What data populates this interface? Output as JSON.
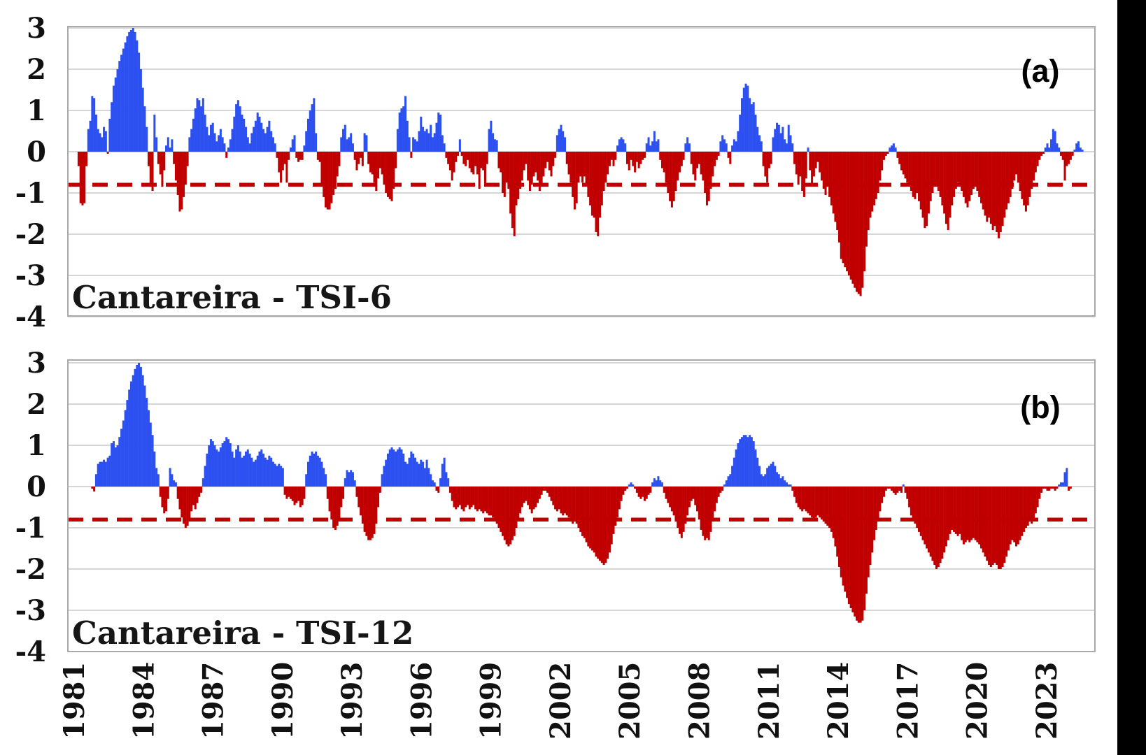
{
  "figure": {
    "background": "#ffffff",
    "right_edge_band_color": "#000000",
    "grid_color": "#c8c8c8",
    "frame_color": "#a9a9a9",
    "positive_color": "#2d50f0",
    "negative_color": "#c00000",
    "threshold_color": "#c00000"
  },
  "chart_data": [
    {
      "type": "bar",
      "panel_label": "(a)",
      "title": "Cantareira - TSI-6",
      "ylim": [
        -4,
        3
      ],
      "yticks": [
        3,
        2,
        1,
        0,
        -1,
        -2,
        -3,
        -4
      ],
      "x_axis": {
        "start": "1981-06",
        "frequency": "monthly",
        "tick_years": [
          1981,
          1984,
          1987,
          1990,
          1993,
          1996,
          1999,
          2002,
          2005,
          2008,
          2011,
          2014,
          2017,
          2020,
          2023
        ]
      },
      "threshold": {
        "value": -0.8,
        "style": "dashed"
      },
      "grid": true,
      "legend": "none",
      "values": [
        -0.35,
        -1.25,
        -1.3,
        -1.25,
        -0.35,
        0.55,
        0.75,
        1.35,
        1.3,
        0.9,
        0.55,
        0.45,
        0.35,
        0.6,
        0.5,
        -0.05,
        0.8,
        1.2,
        1.6,
        1.8,
        2.0,
        2.2,
        2.35,
        2.5,
        2.65,
        2.8,
        2.9,
        2.95,
        3.0,
        2.9,
        2.7,
        2.4,
        2.0,
        1.55,
        1.1,
        0.6,
        -0.35,
        -0.85,
        -0.95,
        0.9,
        0.35,
        -0.3,
        -0.55,
        -0.85,
        -0.45,
        0.15,
        0.35,
        0.1,
        0.3,
        -0.3,
        -0.7,
        -1.05,
        -1.45,
        -1.4,
        -1.1,
        -0.8,
        -0.35,
        0.35,
        0.55,
        0.8,
        1.05,
        1.3,
        1.25,
        1.1,
        1.3,
        0.9,
        0.6,
        0.4,
        0.65,
        0.7,
        0.45,
        0.25,
        0.4,
        0.55,
        0.35,
        0.2,
        -0.15,
        0.1,
        0.3,
        0.55,
        0.85,
        1.15,
        1.25,
        1.1,
        0.9,
        0.8,
        0.6,
        0.35,
        0.2,
        0.45,
        0.6,
        0.75,
        0.95,
        0.85,
        0.7,
        0.55,
        0.45,
        0.6,
        0.75,
        0.5,
        0.35,
        0.2,
        -0.15,
        -0.5,
        -0.75,
        -0.45,
        -0.3,
        -0.75,
        -0.2,
        0.1,
        0.3,
        0.4,
        -0.15,
        -0.25,
        -0.2,
        -0.2,
        0.15,
        0.5,
        0.8,
        1.0,
        1.15,
        1.3,
        0.45,
        -0.2,
        -0.25,
        -0.8,
        -1.1,
        -1.35,
        -1.4,
        -1.4,
        -1.25,
        -1.05,
        -0.9,
        -0.6,
        -0.35,
        0.35,
        0.55,
        0.65,
        0.3,
        0.35,
        0.45,
        0.2,
        -0.2,
        -0.45,
        -0.3,
        -0.15,
        -0.35,
        0.45,
        0.4,
        -0.3,
        -0.5,
        -0.55,
        -0.75,
        -0.95,
        -0.65,
        -0.4,
        -0.55,
        -0.8,
        -1.0,
        -1.1,
        -1.15,
        -1.2,
        -0.9,
        -0.4,
        0.55,
        0.95,
        1.05,
        1.1,
        1.35,
        0.75,
        0.35,
        -0.15,
        0.35,
        0.3,
        0.25,
        0.5,
        0.85,
        0.6,
        0.5,
        0.55,
        0.45,
        0.65,
        0.35,
        0.45,
        0.7,
        0.95,
        0.9,
        0.4,
        0.2,
        -0.15,
        -0.3,
        -0.45,
        -0.7,
        -0.5,
        -0.25,
        -0.1,
        0.3,
        -0.1,
        -0.3,
        -0.35,
        -0.2,
        -0.4,
        -0.5,
        -0.55,
        -0.35,
        -0.55,
        -0.9,
        -0.4,
        -0.45,
        -0.78,
        -0.3,
        0.55,
        0.75,
        0.45,
        0.3,
        0.28,
        -0.4,
        -0.5,
        -1.0,
        -1.1,
        -0.75,
        -0.9,
        -1.5,
        -1.85,
        -2.05,
        -1.3,
        -1.15,
        -0.9,
        -0.7,
        -0.45,
        -0.3,
        -0.7,
        -0.95,
        -0.8,
        -0.6,
        -0.5,
        -0.7,
        -0.95,
        -0.8,
        -0.6,
        -0.4,
        -0.25,
        -0.45,
        -0.6,
        -0.35,
        -0.15,
        0.4,
        0.55,
        0.65,
        0.5,
        0.35,
        -0.3,
        -0.55,
        -0.75,
        -1.1,
        -1.4,
        -1.25,
        -0.75,
        -0.6,
        -0.75,
        -0.6,
        -0.8,
        -1.1,
        -1.3,
        -1.55,
        -1.6,
        -1.95,
        -2.05,
        -1.6,
        -1.3,
        -0.95,
        -0.75,
        -0.55,
        -0.35,
        -0.2,
        -0.35,
        -0.2,
        0.15,
        0.3,
        0.35,
        0.3,
        0.2,
        -0.3,
        -0.45,
        -0.2,
        -0.35,
        -0.5,
        -0.25,
        -0.4,
        -0.3,
        -0.2,
        -0.15,
        0.2,
        0.35,
        0.15,
        0.25,
        0.5,
        0.25,
        0.3,
        -0.2,
        -0.4,
        -0.5,
        -0.75,
        -1.0,
        -1.2,
        -1.35,
        -1.2,
        -0.95,
        -0.7,
        -0.5,
        -0.35,
        -0.2,
        0.2,
        0.35,
        0.2,
        -0.3,
        -0.55,
        -0.7,
        -0.4,
        -0.3,
        -0.55,
        -0.7,
        -1.0,
        -1.3,
        -1.2,
        -0.9,
        -0.6,
        -0.35,
        -0.2,
        -0.1,
        0.25,
        0.4,
        0.3,
        0.2,
        -0.15,
        -0.3,
        0.15,
        0.3,
        0.25,
        0.5,
        0.9,
        1.3,
        1.55,
        1.65,
        1.6,
        1.3,
        1.15,
        1.2,
        0.9,
        0.6,
        0.4,
        0.25,
        -0.35,
        -0.6,
        -0.75,
        -0.4,
        -0.3,
        0.35,
        0.55,
        0.7,
        0.65,
        0.45,
        0.6,
        0.3,
        0.2,
        0.65,
        0.4,
        0.2,
        -0.3,
        -0.55,
        -0.8,
        -0.6,
        -0.95,
        -1.1,
        -0.65,
        0.1,
        -0.45,
        -0.8,
        -0.6,
        -0.4,
        -0.25,
        -0.5,
        -0.7,
        -0.9,
        -1.05,
        -0.85,
        -1.1,
        -1.3,
        -1.5,
        -1.7,
        -1.9,
        -2.2,
        -2.6,
        -2.7,
        -2.8,
        -2.9,
        -3.0,
        -3.1,
        -3.2,
        -3.3,
        -3.4,
        -3.45,
        -3.5,
        -3.3,
        -2.9,
        -2.3,
        -1.9,
        -1.6,
        -1.45,
        -1.3,
        -1.15,
        -1.0,
        -0.7,
        -0.45,
        -0.2,
        -0.1,
        -0.05,
        0.1,
        0.15,
        0.2,
        0.1,
        -0.15,
        -0.3,
        -0.45,
        -0.55,
        -0.65,
        -0.75,
        -0.8,
        -0.95,
        -1.1,
        -1.15,
        -1.0,
        -1.2,
        -1.4,
        -1.6,
        -1.85,
        -1.8,
        -1.5,
        -1.2,
        -1.0,
        -0.85,
        -0.8,
        -0.95,
        -1.1,
        -1.3,
        -1.5,
        -1.75,
        -1.9,
        -1.6,
        -1.3,
        -1.1,
        -0.9,
        -0.75,
        -0.8,
        -0.95,
        -1.1,
        -1.25,
        -1.35,
        -1.2,
        -1.05,
        -0.9,
        -0.85,
        -0.95,
        -1.1,
        -1.25,
        -1.4,
        -1.55,
        -1.7,
        -1.6,
        -1.75,
        -1.9,
        -1.8,
        -1.95,
        -2.1,
        -1.95,
        -1.8,
        -1.6,
        -1.4,
        -1.25,
        -1.1,
        -0.9,
        -0.7,
        -0.55,
        -0.75,
        -0.95,
        -1.15,
        -1.3,
        -1.45,
        -1.3,
        -1.1,
        -0.9,
        -0.7,
        -0.5,
        -0.35,
        -0.2,
        -0.1,
        -0.05,
        0.1,
        0.2,
        0.1,
        0.3,
        0.55,
        0.5,
        0.2,
        0.1,
        -0.1,
        -0.2,
        -0.7,
        -0.35,
        -0.3,
        -0.2,
        -0.1,
        0.05,
        0.2,
        0.25,
        0.1,
        0.05
      ]
    },
    {
      "type": "bar",
      "panel_label": "(b)",
      "title": "Cantareira - TSI-12",
      "ylim": [
        -4,
        3
      ],
      "yticks": [
        3,
        2,
        1,
        0,
        -1,
        -2,
        -3,
        -4
      ],
      "x_axis": {
        "start": "1982-01",
        "frequency": "monthly",
        "tick_years": [
          1981,
          1984,
          1987,
          1990,
          1993,
          1996,
          1999,
          2002,
          2005,
          2008,
          2011,
          2014,
          2017,
          2020,
          2023
        ]
      },
      "threshold": {
        "value": -0.8,
        "style": "dashed"
      },
      "grid": true,
      "legend": "none",
      "values": [
        -0.05,
        -0.12,
        0.3,
        0.55,
        0.6,
        0.6,
        0.65,
        0.6,
        0.7,
        0.75,
        1.05,
        1.1,
        0.95,
        1.0,
        1.2,
        1.4,
        1.6,
        1.85,
        2.1,
        2.35,
        2.55,
        2.7,
        2.85,
        2.95,
        3.0,
        2.9,
        2.7,
        2.45,
        2.15,
        1.85,
        1.55,
        1.25,
        0.85,
        0.45,
        0.3,
        -0.25,
        -0.5,
        -0.65,
        -0.6,
        -0.3,
        0.45,
        0.3,
        0.15,
        0.1,
        -0.3,
        -0.55,
        -0.75,
        -0.9,
        -1.0,
        -0.95,
        -0.85,
        -0.6,
        -0.45,
        -0.55,
        -0.4,
        -0.25,
        -0.15,
        0.2,
        0.5,
        0.8,
        1.0,
        1.15,
        1.1,
        1.0,
        0.9,
        0.85,
        0.95,
        1.05,
        1.1,
        1.2,
        1.15,
        1.05,
        0.85,
        0.7,
        0.9,
        1.0,
        0.85,
        0.7,
        0.75,
        0.85,
        0.9,
        0.8,
        0.7,
        0.6,
        0.65,
        0.75,
        0.85,
        0.9,
        0.8,
        0.7,
        0.65,
        0.75,
        0.7,
        0.6,
        0.55,
        0.5,
        0.55,
        0.5,
        0.45,
        -0.2,
        -0.3,
        -0.25,
        -0.3,
        -0.35,
        -0.45,
        -0.4,
        -0.35,
        -0.5,
        -0.45,
        -0.3,
        0.3,
        0.6,
        0.75,
        0.85,
        0.8,
        0.85,
        0.75,
        0.7,
        0.6,
        0.45,
        0.3,
        -0.3,
        -0.6,
        -0.8,
        -1.0,
        -1.05,
        -0.95,
        -0.8,
        -0.5,
        -0.3,
        0.2,
        0.4,
        0.35,
        0.4,
        0.35,
        0.15,
        -0.25,
        -0.5,
        -0.7,
        -0.9,
        -1.1,
        -1.2,
        -1.3,
        -1.3,
        -1.25,
        -1.15,
        -0.9,
        -0.5,
        -0.15,
        0.3,
        0.5,
        0.65,
        0.8,
        0.9,
        0.95,
        0.9,
        0.85,
        0.9,
        0.95,
        0.9,
        0.8,
        0.6,
        0.55,
        0.7,
        0.85,
        0.8,
        0.7,
        0.6,
        0.55,
        0.65,
        0.6,
        0.45,
        0.65,
        0.45,
        0.3,
        0.15,
        0.1,
        -0.1,
        -0.15,
        0.2,
        0.55,
        0.7,
        0.35,
        0.2,
        -0.15,
        -0.35,
        -0.5,
        -0.55,
        -0.5,
        -0.45,
        -0.55,
        -0.6,
        -0.5,
        -0.45,
        -0.55,
        -0.5,
        -0.45,
        -0.55,
        -0.6,
        -0.55,
        -0.6,
        -0.65,
        -0.6,
        -0.65,
        -0.7,
        -0.7,
        -0.75,
        -0.8,
        -0.9,
        -1.0,
        -1.1,
        -1.2,
        -1.3,
        -1.4,
        -1.45,
        -1.4,
        -1.3,
        -1.2,
        -1.0,
        -0.8,
        -0.65,
        -0.5,
        -0.4,
        -0.35,
        -0.45,
        -0.55,
        -0.65,
        -0.55,
        -0.5,
        -0.4,
        -0.3,
        -0.2,
        -0.1,
        -0.1,
        -0.15,
        -0.25,
        -0.35,
        -0.45,
        -0.55,
        -0.6,
        -0.55,
        -0.65,
        -0.7,
        -0.65,
        -0.7,
        -0.75,
        -0.85,
        -0.9,
        -0.85,
        -0.9,
        -1.0,
        -1.1,
        -1.2,
        -1.25,
        -1.35,
        -1.45,
        -1.5,
        -1.55,
        -1.6,
        -1.7,
        -1.75,
        -1.8,
        -1.85,
        -1.9,
        -1.85,
        -1.75,
        -1.6,
        -1.4,
        -1.15,
        -0.95,
        -0.75,
        -0.55,
        -0.35,
        -0.2,
        -0.1,
        -0.05,
        0.05,
        0.1,
        0.05,
        -0.05,
        -0.15,
        -0.25,
        -0.3,
        -0.25,
        -0.35,
        -0.3,
        -0.2,
        -0.15,
        0.1,
        0.2,
        0.15,
        0.25,
        0.15,
        0.1,
        -0.15,
        -0.3,
        -0.4,
        -0.5,
        -0.6,
        -0.7,
        -0.85,
        -1.0,
        -1.15,
        -1.25,
        -1.1,
        -0.9,
        -0.7,
        -0.5,
        -0.35,
        -0.3,
        -0.45,
        -0.6,
        -0.8,
        -1.05,
        -1.2,
        -1.3,
        -1.25,
        -1.3,
        -1.1,
        -0.85,
        -0.6,
        -0.4,
        -0.25,
        -0.15,
        -0.1,
        0.05,
        0.15,
        0.25,
        0.3,
        0.5,
        0.7,
        0.9,
        1.05,
        1.15,
        1.2,
        1.25,
        1.25,
        1.2,
        1.25,
        1.2,
        1.1,
        0.9,
        0.7,
        0.5,
        0.3,
        0.25,
        0.3,
        0.45,
        0.5,
        0.55,
        0.6,
        0.5,
        0.35,
        0.3,
        0.2,
        0.25,
        0.15,
        0.1,
        0.05,
        0.05,
        -0.1,
        -0.25,
        -0.4,
        -0.5,
        -0.55,
        -0.6,
        -0.55,
        -0.6,
        -0.65,
        -0.7,
        -0.75,
        -0.8,
        -0.75,
        -0.7,
        -0.75,
        -0.8,
        -0.85,
        -0.9,
        -0.95,
        -1.0,
        -1.1,
        -1.25,
        -1.45,
        -1.7,
        -1.95,
        -2.2,
        -2.4,
        -2.55,
        -2.7,
        -2.85,
        -2.95,
        -3.05,
        -3.15,
        -3.25,
        -3.3,
        -3.3,
        -3.25,
        -3.0,
        -2.6,
        -2.2,
        -1.9,
        -1.6,
        -1.3,
        -1.05,
        -0.85,
        -0.6,
        -0.4,
        -0.25,
        -0.1,
        -0.05,
        -0.05,
        -0.1,
        -0.15,
        -0.2,
        -0.15,
        -0.1,
        -0.15,
        0.05,
        -0.15,
        -0.3,
        -0.5,
        -0.7,
        -0.8,
        -0.9,
        -1.0,
        -1.1,
        -1.2,
        -1.3,
        -1.4,
        -1.5,
        -1.6,
        -1.7,
        -1.8,
        -1.9,
        -2.0,
        -1.95,
        -1.85,
        -1.75,
        -1.6,
        -1.45,
        -1.3,
        -1.15,
        -1.05,
        -1.1,
        -1.15,
        -1.2,
        -1.15,
        -1.3,
        -1.4,
        -1.35,
        -1.3,
        -1.35,
        -1.3,
        -1.25,
        -1.3,
        -1.35,
        -1.4,
        -1.5,
        -1.6,
        -1.7,
        -1.8,
        -1.9,
        -1.95,
        -1.9,
        -1.85,
        -1.9,
        -2.0,
        -2.0,
        -1.95,
        -1.85,
        -1.7,
        -1.55,
        -1.4,
        -1.3,
        -1.35,
        -1.45,
        -1.4,
        -1.3,
        -1.2,
        -1.1,
        -1.0,
        -0.95,
        -0.85,
        -0.9,
        -0.8,
        -0.65,
        -0.5,
        -0.3,
        -0.15,
        -0.05,
        -0.05,
        -0.1,
        -0.1,
        -0.05,
        -0.05,
        -0.1,
        -0.05,
        0.05,
        0.1,
        0.1,
        0.35,
        0.45,
        -0.1,
        -0.05
      ]
    }
  ]
}
